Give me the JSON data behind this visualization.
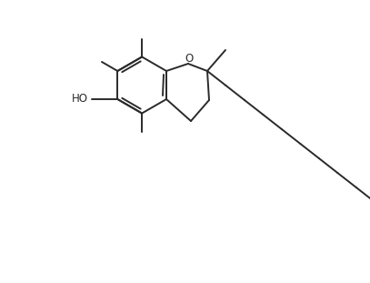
{
  "bg_color": "#ffffff",
  "line_color": "#2a2a2a",
  "line_width": 1.4,
  "font_size": 8.5,
  "fig_width": 4.07,
  "fig_height": 3.11,
  "dpi": 100,
  "xlim": [
    0,
    407
  ],
  "ylim": [
    0,
    311
  ]
}
